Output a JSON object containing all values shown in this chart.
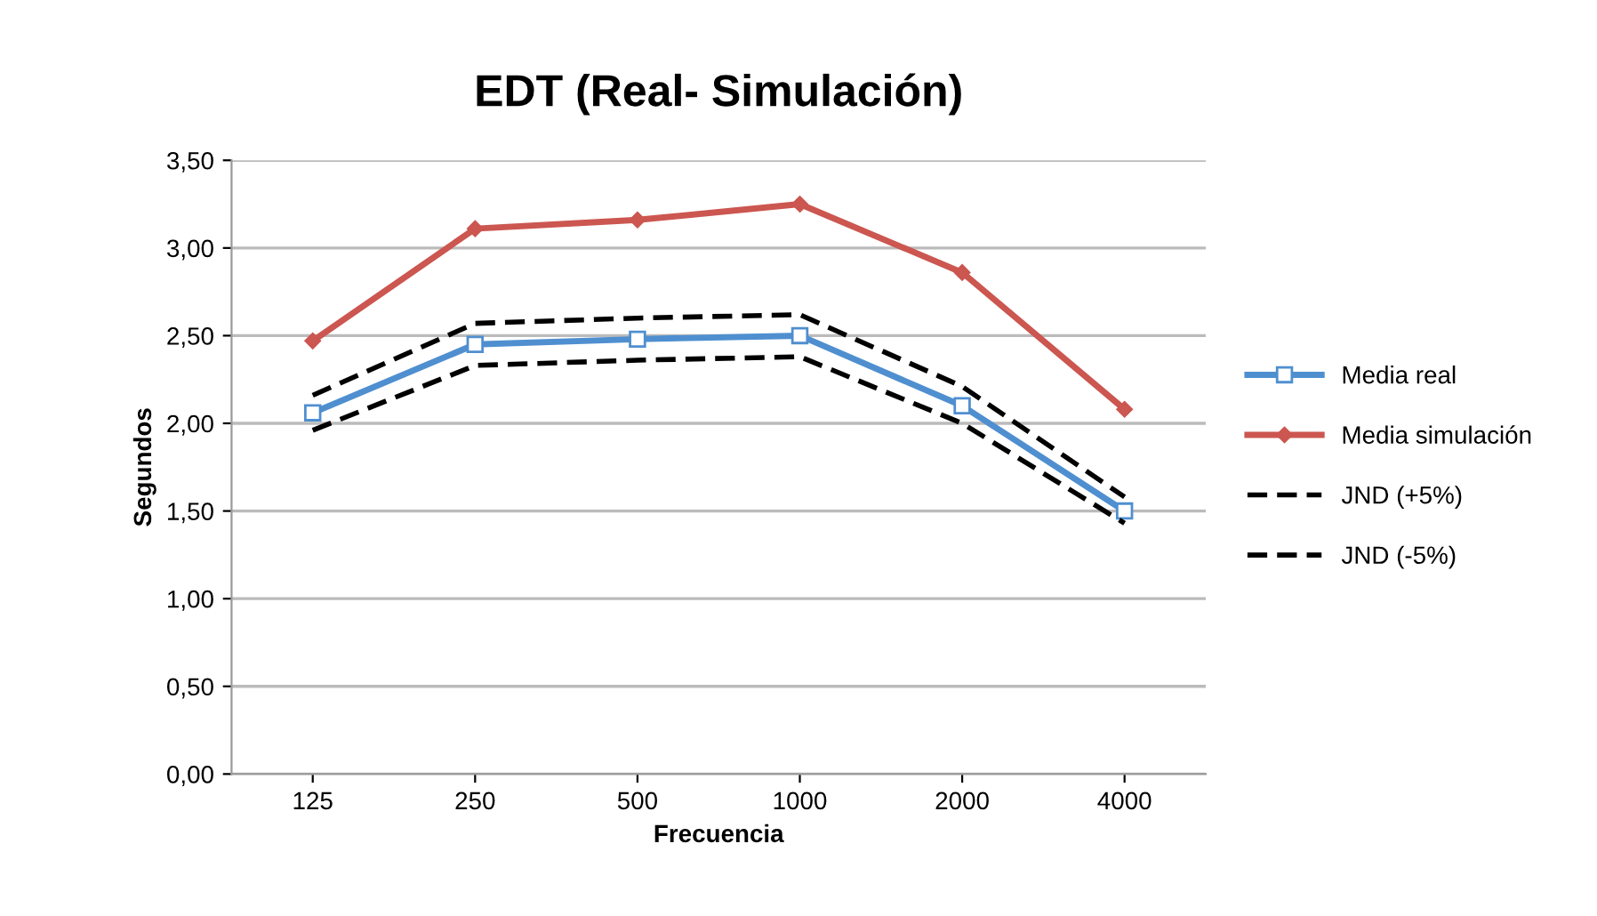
{
  "chart_data": {
    "type": "line",
    "title": "EDT (Real- Simulación)",
    "xlabel": "Frecuencia",
    "ylabel": "Segundos",
    "categories": [
      "125",
      "250",
      "500",
      "1000",
      "2000",
      "4000"
    ],
    "series": [
      {
        "name": "Media real",
        "color": "#4f8fd0",
        "marker": "square",
        "line_style": "solid",
        "values": [
          2.06,
          2.45,
          2.48,
          2.5,
          2.1,
          1.5
        ]
      },
      {
        "name": "Media simulación",
        "color": "#cc5650",
        "marker": "diamond",
        "line_style": "solid",
        "values": [
          2.47,
          3.11,
          3.16,
          3.25,
          2.86,
          2.08
        ]
      },
      {
        "name": "JND (+5%)",
        "color": "#000000",
        "marker": "none",
        "line_style": "dashed",
        "values": [
          2.16,
          2.57,
          2.6,
          2.62,
          2.21,
          1.58
        ]
      },
      {
        "name": "JND (-5%)",
        "color": "#000000",
        "marker": "none",
        "line_style": "dashed",
        "values": [
          1.96,
          2.33,
          2.36,
          2.38,
          2.0,
          1.43
        ]
      }
    ],
    "ylim": [
      0,
      3.5
    ],
    "yticks": [
      {
        "value": 0,
        "label": "0,00"
      },
      {
        "value": 0.5,
        "label": "0,50"
      },
      {
        "value": 1,
        "label": "1,00"
      },
      {
        "value": 1.5,
        "label": "1,50"
      },
      {
        "value": 2,
        "label": "2,00"
      },
      {
        "value": 2.5,
        "label": "2,50"
      },
      {
        "value": 3,
        "label": "3,00"
      },
      {
        "value": 3.5,
        "label": "3,50"
      }
    ],
    "grid": "y",
    "legend": "right"
  }
}
